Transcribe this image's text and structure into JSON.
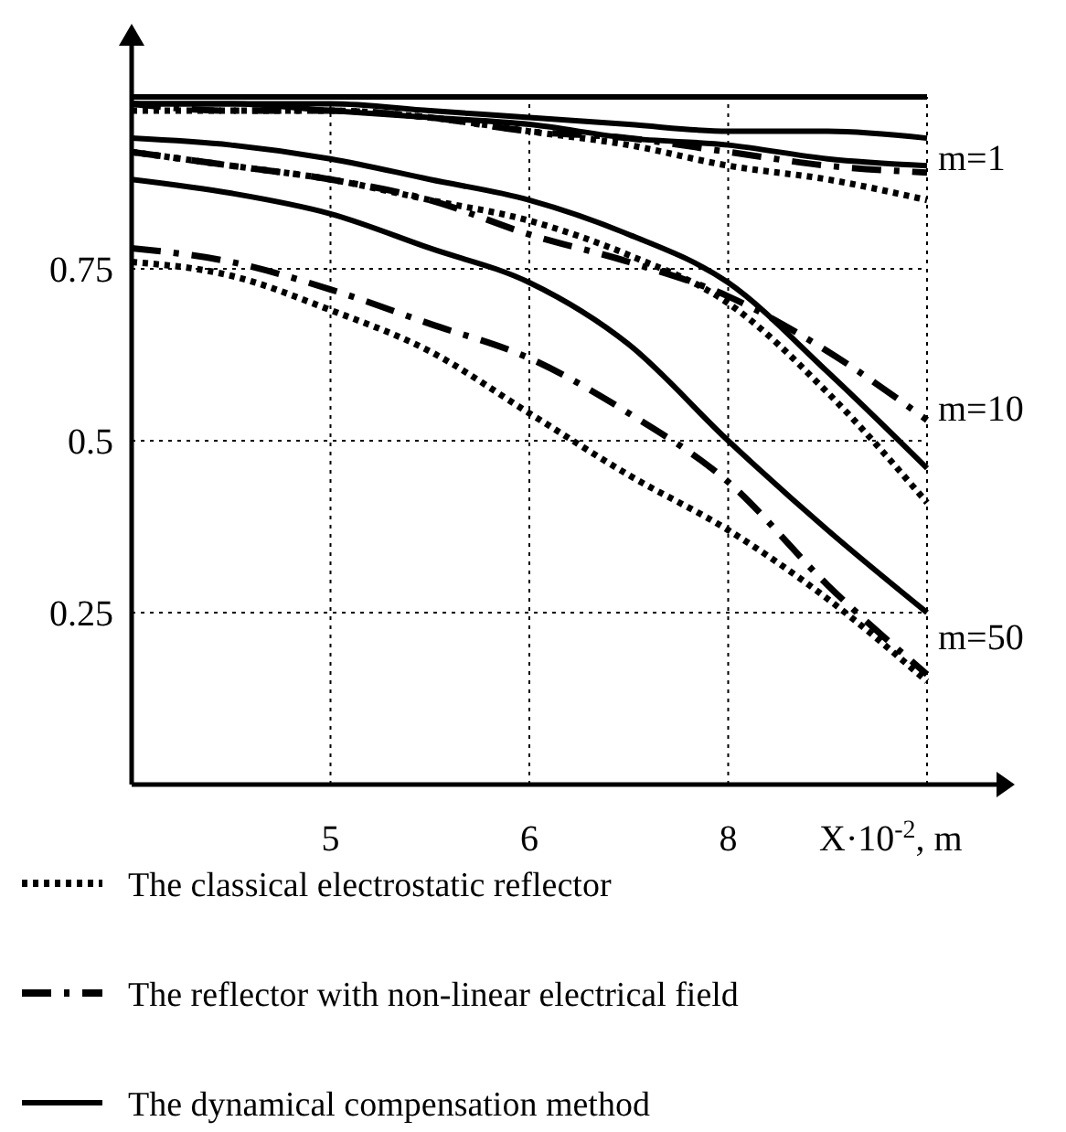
{
  "chart_data": {
    "type": "line",
    "xlabel": "X·10$^{-2}$, m",
    "categories": [
      null,
      null,
      "5",
      null,
      "6",
      null,
      "8",
      null,
      null
    ],
    "ylim": [
      0,
      1
    ],
    "yticks": [
      0.25,
      0.5,
      0.75
    ],
    "grid": true,
    "legend": "bottom",
    "marker": "none",
    "series": [
      {
        "color": "#000000",
        "line_style": "solid",
        "values": [
          1.0,
          1.0,
          1.0,
          1.0,
          1.0,
          1.0,
          1.0,
          1.0,
          1.0
        ]
      },
      {
        "color": "#000000",
        "line_style": "solid",
        "values": [
          0.99,
          0.99,
          0.99,
          0.98,
          0.97,
          0.96,
          0.95,
          0.95,
          0.94
        ]
      },
      {
        "color": "#000000",
        "line_style": "solid",
        "values": [
          0.99,
          0.99,
          0.98,
          0.97,
          0.96,
          0.94,
          0.93,
          0.91,
          0.9
        ]
      },
      {
        "color": "#000000",
        "line_style": "dashed",
        "values": [
          0.99,
          0.98,
          0.98,
          0.97,
          0.95,
          0.94,
          0.92,
          0.9,
          0.89
        ]
      },
      {
        "color": "#000000",
        "line_style": "dotted",
        "values": [
          0.98,
          0.98,
          0.98,
          0.97,
          0.95,
          0.93,
          0.9,
          0.88,
          0.85
        ]
      },
      {
        "name": "The dynamical compensation method",
        "color": "#000000",
        "line_style": "solid",
        "values": [
          0.94,
          0.93,
          0.91,
          0.88,
          0.85,
          0.8,
          0.73,
          0.6,
          0.46
        ]
      },
      {
        "name": "The reflector with non-linear electrical field",
        "color": "#000000",
        "line_style": "dashed",
        "values": [
          0.92,
          0.9,
          0.88,
          0.85,
          0.8,
          0.76,
          0.71,
          0.63,
          0.53
        ]
      },
      {
        "name": "The classical electrostatic reflector",
        "color": "#000000",
        "line_style": "dotted",
        "values": [
          0.92,
          0.9,
          0.88,
          0.85,
          0.82,
          0.77,
          0.7,
          0.57,
          0.41
        ]
      },
      {
        "color": "#000000",
        "line_style": "solid",
        "values": [
          0.88,
          0.86,
          0.83,
          0.78,
          0.73,
          0.64,
          0.5,
          0.37,
          0.25
        ]
      },
      {
        "color": "#000000",
        "line_style": "dashed",
        "values": [
          0.78,
          0.76,
          0.72,
          0.67,
          0.62,
          0.54,
          0.44,
          0.29,
          0.16
        ]
      },
      {
        "color": "#000000",
        "line_style": "dotted",
        "values": [
          0.76,
          0.74,
          0.69,
          0.63,
          0.54,
          0.45,
          0.37,
          0.27,
          0.15
        ]
      }
    ],
    "annotations": [
      "m=1",
      "m=10",
      "m=50"
    ]
  }
}
